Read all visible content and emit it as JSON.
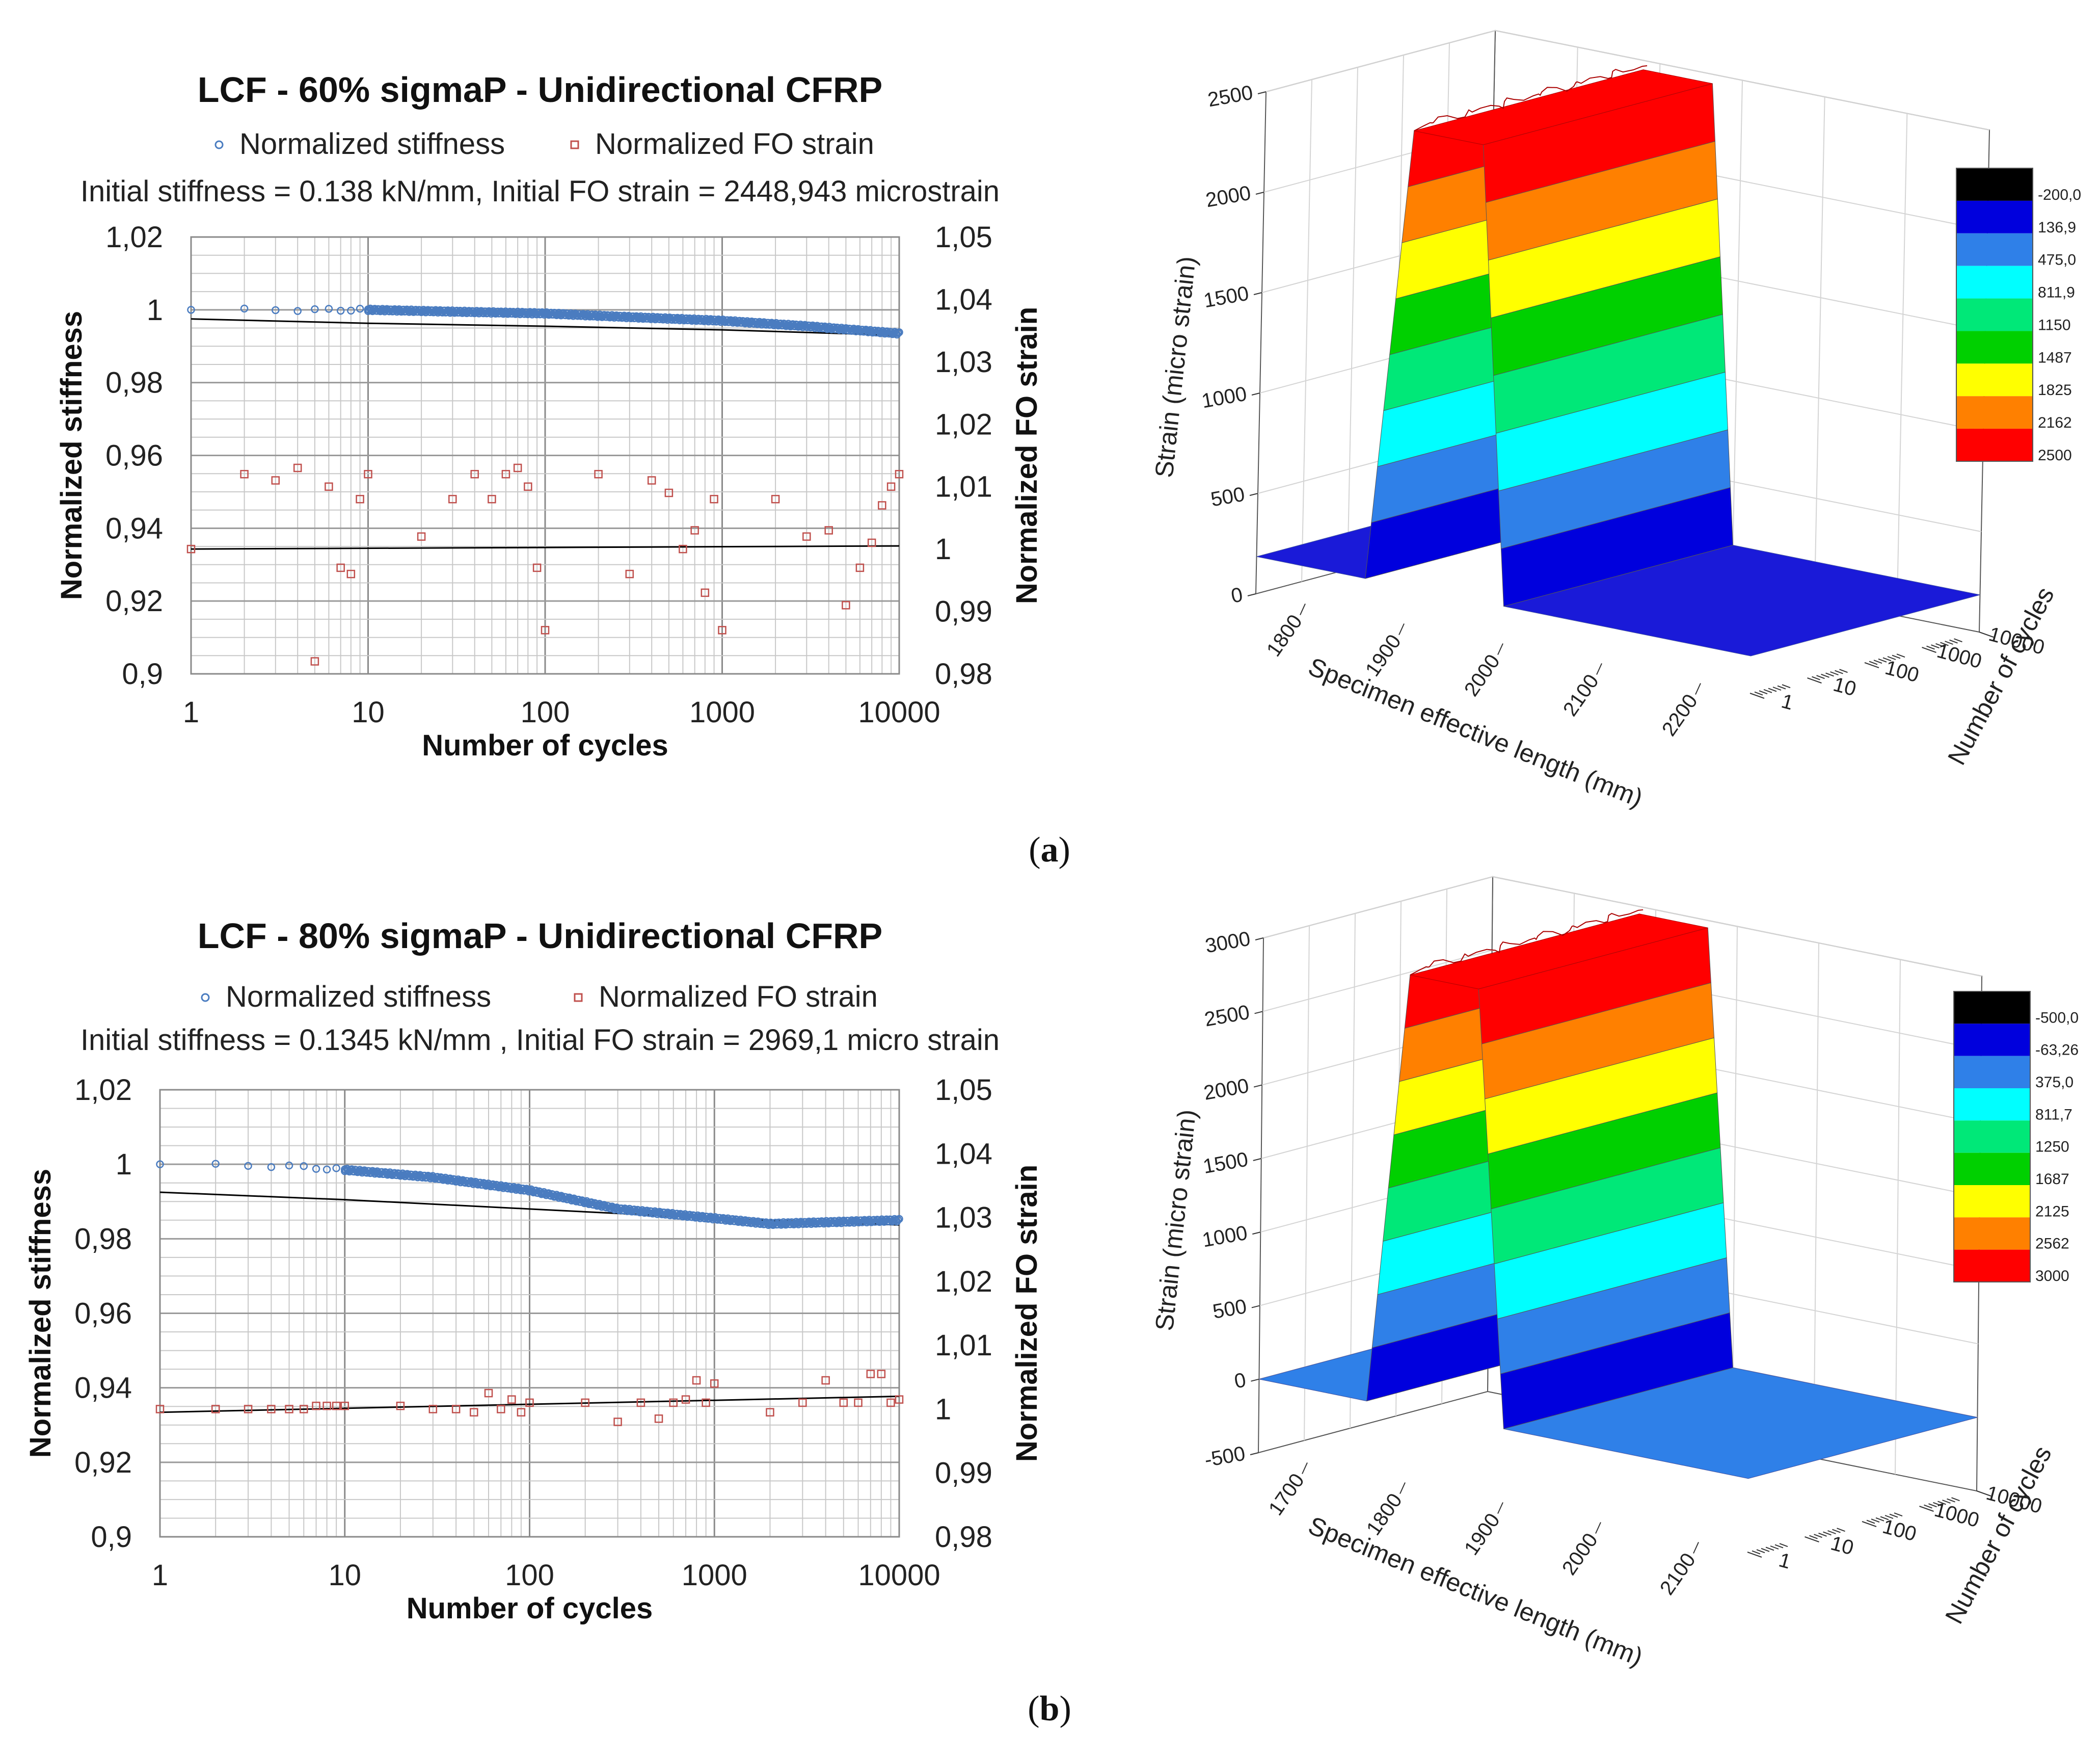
{
  "panels": [
    {
      "open": "(",
      "letter": "a",
      "close": ")"
    },
    {
      "open": "(",
      "letter": "b",
      "close": ")"
    }
  ],
  "colors": {
    "stiffness": "#4a7cc0",
    "fo_strain": "#c0504d",
    "trend": "#000000",
    "grid": "#c8c8c8"
  },
  "chart_data": [
    {
      "id": "a-2d",
      "type": "scatter",
      "title": "LCF - 60% sigmaP - Unidirectional  CFRP",
      "legend": [
        "Normalized stiffness",
        "Normalized FO strain"
      ],
      "info": "Initial stiffness =  0.138 kN/mm, Initial  FO strain = 2448,943 microstrain",
      "xlabel": "Number of cycles",
      "ylabel": "Normalized stiffness",
      "y2label": "Normalized FO strain",
      "xscale": "log",
      "xlim": [
        1,
        10000
      ],
      "ylim": [
        0.9,
        1.02
      ],
      "y2lim": [
        0.98,
        1.05
      ],
      "xticks": [
        "1",
        "10",
        "100",
        "1000",
        "10000"
      ],
      "yticks": [
        "1,02",
        "1",
        "0,98",
        "0,96",
        "0,94",
        "0,92",
        "0,9"
      ],
      "y2ticks": [
        "1,05",
        "1,04",
        "1,03",
        "1,02",
        "1,01",
        "1",
        "0,99",
        "0,98"
      ],
      "stiffness_knots": [
        [
          1,
          1.0
        ],
        [
          10,
          1.0
        ],
        [
          30,
          0.9995
        ],
        [
          100,
          0.999
        ],
        [
          300,
          0.998
        ],
        [
          1000,
          0.997
        ],
        [
          3000,
          0.9955
        ],
        [
          10000,
          0.9935
        ]
      ],
      "stiffness_trend": [
        [
          1,
          0.9975
        ],
        [
          10,
          0.9963
        ],
        [
          100,
          0.9955
        ],
        [
          1000,
          0.9945
        ],
        [
          10000,
          0.993
        ]
      ],
      "fo_strain": [
        [
          1,
          1.0
        ],
        [
          2,
          1.012
        ],
        [
          3,
          1.011
        ],
        [
          4,
          1.013
        ],
        [
          5,
          0.982
        ],
        [
          6,
          1.01
        ],
        [
          7,
          0.997
        ],
        [
          8,
          0.996
        ],
        [
          9,
          1.008
        ],
        [
          10,
          1.012
        ],
        [
          20,
          1.002
        ],
        [
          30,
          1.008
        ],
        [
          40,
          1.012
        ],
        [
          50,
          1.008
        ],
        [
          60,
          1.012
        ],
        [
          70,
          1.013
        ],
        [
          80,
          1.01
        ],
        [
          90,
          0.997
        ],
        [
          100,
          0.987
        ],
        [
          200,
          1.012
        ],
        [
          300,
          0.996
        ],
        [
          400,
          1.011
        ],
        [
          500,
          1.009
        ],
        [
          600,
          1.0
        ],
        [
          700,
          1.003
        ],
        [
          800,
          0.993
        ],
        [
          900,
          1.008
        ],
        [
          1000,
          0.987
        ],
        [
          2000,
          1.008
        ],
        [
          3000,
          1.002
        ],
        [
          4000,
          1.003
        ],
        [
          5000,
          0.991
        ],
        [
          6000,
          0.997
        ],
        [
          7000,
          1.001
        ],
        [
          8000,
          1.007
        ],
        [
          9000,
          1.01
        ],
        [
          10000,
          1.012
        ]
      ],
      "fo_trend": [
        [
          1,
          1.0
        ],
        [
          10000,
          1.0005
        ]
      ]
    },
    {
      "id": "a-3d",
      "type": "surface3d",
      "xlabel": "Specimen effective length (mm)",
      "ylabel": "Number of cycles",
      "zlabel": "Strain (micro strain)",
      "xticks": [
        "1800",
        "1900",
        "2000",
        "2100",
        "2200"
      ],
      "yticks": [
        "1",
        "10",
        "100",
        "1000",
        "10000"
      ],
      "zticks": [
        "0",
        "500",
        "1000",
        "1500",
        "2000",
        "2500"
      ],
      "zlim": [
        -200,
        2500
      ],
      "plateau": 2450,
      "colorbar": {
        "labels": [
          "-200,0",
          "136,9",
          "475,0",
          "811,9",
          "1150",
          "1487",
          "1825",
          "2162",
          "2500"
        ],
        "colors": [
          "#000000",
          "#0000dd",
          "#2f80e8",
          "#00ffff",
          "#00e878",
          "#00d000",
          "#ffff00",
          "#ff8000",
          "#ff0000"
        ]
      }
    },
    {
      "id": "b-2d",
      "type": "scatter",
      "title": "LCF - 80% sigmaP - Unidirectional  CFRP",
      "legend": [
        "Normalized stiffness",
        "Normalized FO strain"
      ],
      "info": "Initial stiffness =   0.1345 kN/mm , Initial FO strain = 2969,1 micro strain",
      "xlabel": "Number of cycles",
      "ylabel": "Normalized stiffness",
      "y2label": "Normalized FO strain",
      "xscale": "log",
      "xlim": [
        1,
        10000
      ],
      "ylim": [
        0.9,
        1.02
      ],
      "y2lim": [
        0.98,
        1.05
      ],
      "xticks": [
        "1",
        "10",
        "100",
        "1000",
        "10000"
      ],
      "yticks": [
        "1,02",
        "1",
        "0,98",
        "0,96",
        "0,94",
        "0,92",
        "0,9"
      ],
      "y2ticks": [
        "1,05",
        "1,04",
        "1,03",
        "1,02",
        "1,01",
        "1",
        "0,99",
        "0,98"
      ],
      "stiffness_knots": [
        [
          1,
          1.0
        ],
        [
          5,
          0.9995
        ],
        [
          10,
          0.9985
        ],
        [
          30,
          0.9965
        ],
        [
          100,
          0.993
        ],
        [
          300,
          0.988
        ],
        [
          1000,
          0.9855
        ],
        [
          2000,
          0.984
        ],
        [
          10000,
          0.985
        ]
      ],
      "stiffness_trend": [
        [
          1,
          0.9925
        ],
        [
          10,
          0.9905
        ],
        [
          100,
          0.988
        ],
        [
          1000,
          0.9855
        ],
        [
          10000,
          0.9837
        ]
      ],
      "fo_strain": [
        [
          1,
          1.0
        ],
        [
          2,
          1.0
        ],
        [
          3,
          1.0
        ],
        [
          4,
          1.0
        ],
        [
          5,
          1.0
        ],
        [
          6,
          1.0
        ],
        [
          7,
          1.0005
        ],
        [
          8,
          1.0005
        ],
        [
          9,
          1.0005
        ],
        [
          10,
          1.0005
        ],
        [
          20,
          1.0005
        ],
        [
          30,
          1.0
        ],
        [
          40,
          1.0
        ],
        [
          50,
          0.9995
        ],
        [
          60,
          1.0025
        ],
        [
          70,
          1.0
        ],
        [
          80,
          1.0015
        ],
        [
          90,
          0.9995
        ],
        [
          100,
          1.001
        ],
        [
          200,
          1.001
        ],
        [
          300,
          0.998
        ],
        [
          400,
          1.001
        ],
        [
          500,
          0.9985
        ],
        [
          600,
          1.001
        ],
        [
          700,
          1.0015
        ],
        [
          800,
          1.0045
        ],
        [
          900,
          1.001
        ],
        [
          1000,
          1.004
        ],
        [
          2000,
          0.9995
        ],
        [
          3000,
          1.001
        ],
        [
          4000,
          1.0045
        ],
        [
          5000,
          1.001
        ],
        [
          6000,
          1.001
        ],
        [
          7000,
          1.0055
        ],
        [
          8000,
          1.0055
        ],
        [
          9000,
          1.001
        ],
        [
          10000,
          1.0015
        ]
      ],
      "fo_trend": [
        [
          1,
          0.9995
        ],
        [
          10000,
          1.002
        ]
      ]
    },
    {
      "id": "b-3d",
      "type": "surface3d",
      "xlabel": "Specimen effective length (mm)",
      "ylabel": "Number of cycles",
      "zlabel": "Strain (micro strain)",
      "xticks": [
        "1700",
        "1800",
        "1900",
        "2000",
        "2100"
      ],
      "yticks": [
        "1",
        "10",
        "100",
        "1000",
        "10000"
      ],
      "zticks": [
        "-500",
        "0",
        "500",
        "1000",
        "1500",
        "2000",
        "2500",
        "3000"
      ],
      "zlim": [
        -500,
        3000
      ],
      "plateau": 2950,
      "colorbar": {
        "labels": [
          "-500,0",
          "-63,26",
          "375,0",
          "811,7",
          "1250",
          "1687",
          "2125",
          "2562",
          "3000"
        ],
        "colors": [
          "#000000",
          "#0000dd",
          "#2f80e8",
          "#00ffff",
          "#00e878",
          "#00d000",
          "#ffff00",
          "#ff8000",
          "#ff0000"
        ]
      }
    }
  ]
}
